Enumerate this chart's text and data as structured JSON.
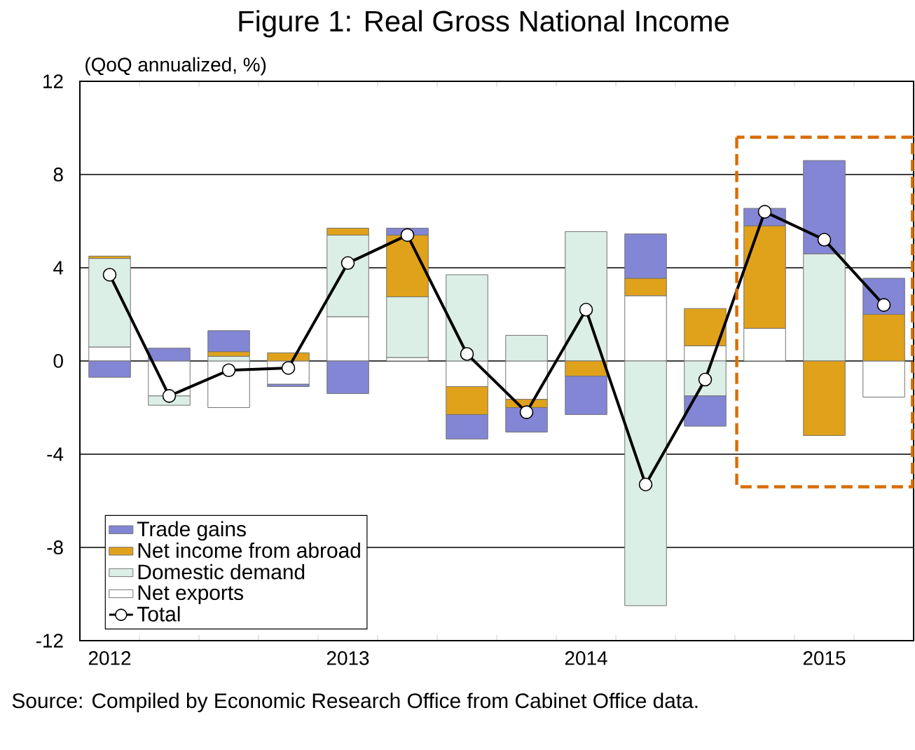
{
  "chart_data": {
    "type": "bar",
    "stacked": true,
    "title": "Figure 1: Real Gross National Income",
    "ylabel": "(QoQ annualized, %)",
    "categories": [
      "2012",
      null,
      null,
      null,
      "2013",
      null,
      null,
      null,
      "2014",
      null,
      null,
      null,
      "2015",
      null
    ],
    "series": [
      {
        "name": "Net exports",
        "color": "#ffffff",
        "values": [
          0.6,
          -1.5,
          -2.0,
          -1.0,
          1.9,
          0.15,
          -1.1,
          -1.65,
          0,
          2.8,
          0.65,
          1.4,
          0,
          -1.55
        ]
      },
      {
        "name": "Domestic demand",
        "color": "#dcefe6",
        "values": [
          3.8,
          -0.4,
          0.2,
          0,
          3.5,
          2.6,
          3.7,
          1.1,
          5.55,
          -10.5,
          -1.5,
          0,
          4.6,
          0
        ]
      },
      {
        "name": "Net income from abroad",
        "color": "#e0a21a",
        "values": [
          0.1,
          0,
          0.2,
          0.35,
          0.3,
          2.65,
          -1.2,
          -0.35,
          -0.65,
          0.75,
          1.6,
          4.4,
          -3.2,
          2.0
        ]
      },
      {
        "name": "Trade gains",
        "color": "#8386d4",
        "values": [
          -0.7,
          0.55,
          0.9,
          -0.1,
          -1.4,
          0.3,
          -1.05,
          -1.05,
          -1.65,
          1.9,
          -1.3,
          0.75,
          4.0,
          1.55
        ]
      },
      {
        "name": "Total",
        "type": "line",
        "color": "#000000",
        "marker": "circle",
        "values": [
          3.7,
          -1.5,
          -0.4,
          -0.3,
          4.2,
          5.4,
          0.3,
          -2.2,
          2.2,
          -5.3,
          -0.8,
          6.4,
          5.2,
          2.4
        ]
      }
    ],
    "ylim": [
      -12,
      12
    ],
    "yticks": [
      -12,
      -8,
      -4,
      0,
      4,
      8,
      12
    ],
    "grid": "y",
    "legend": "bottom left",
    "annotations": [
      "Source: Compiled by Economic Research Office from Cabinet Office data."
    ]
  }
}
